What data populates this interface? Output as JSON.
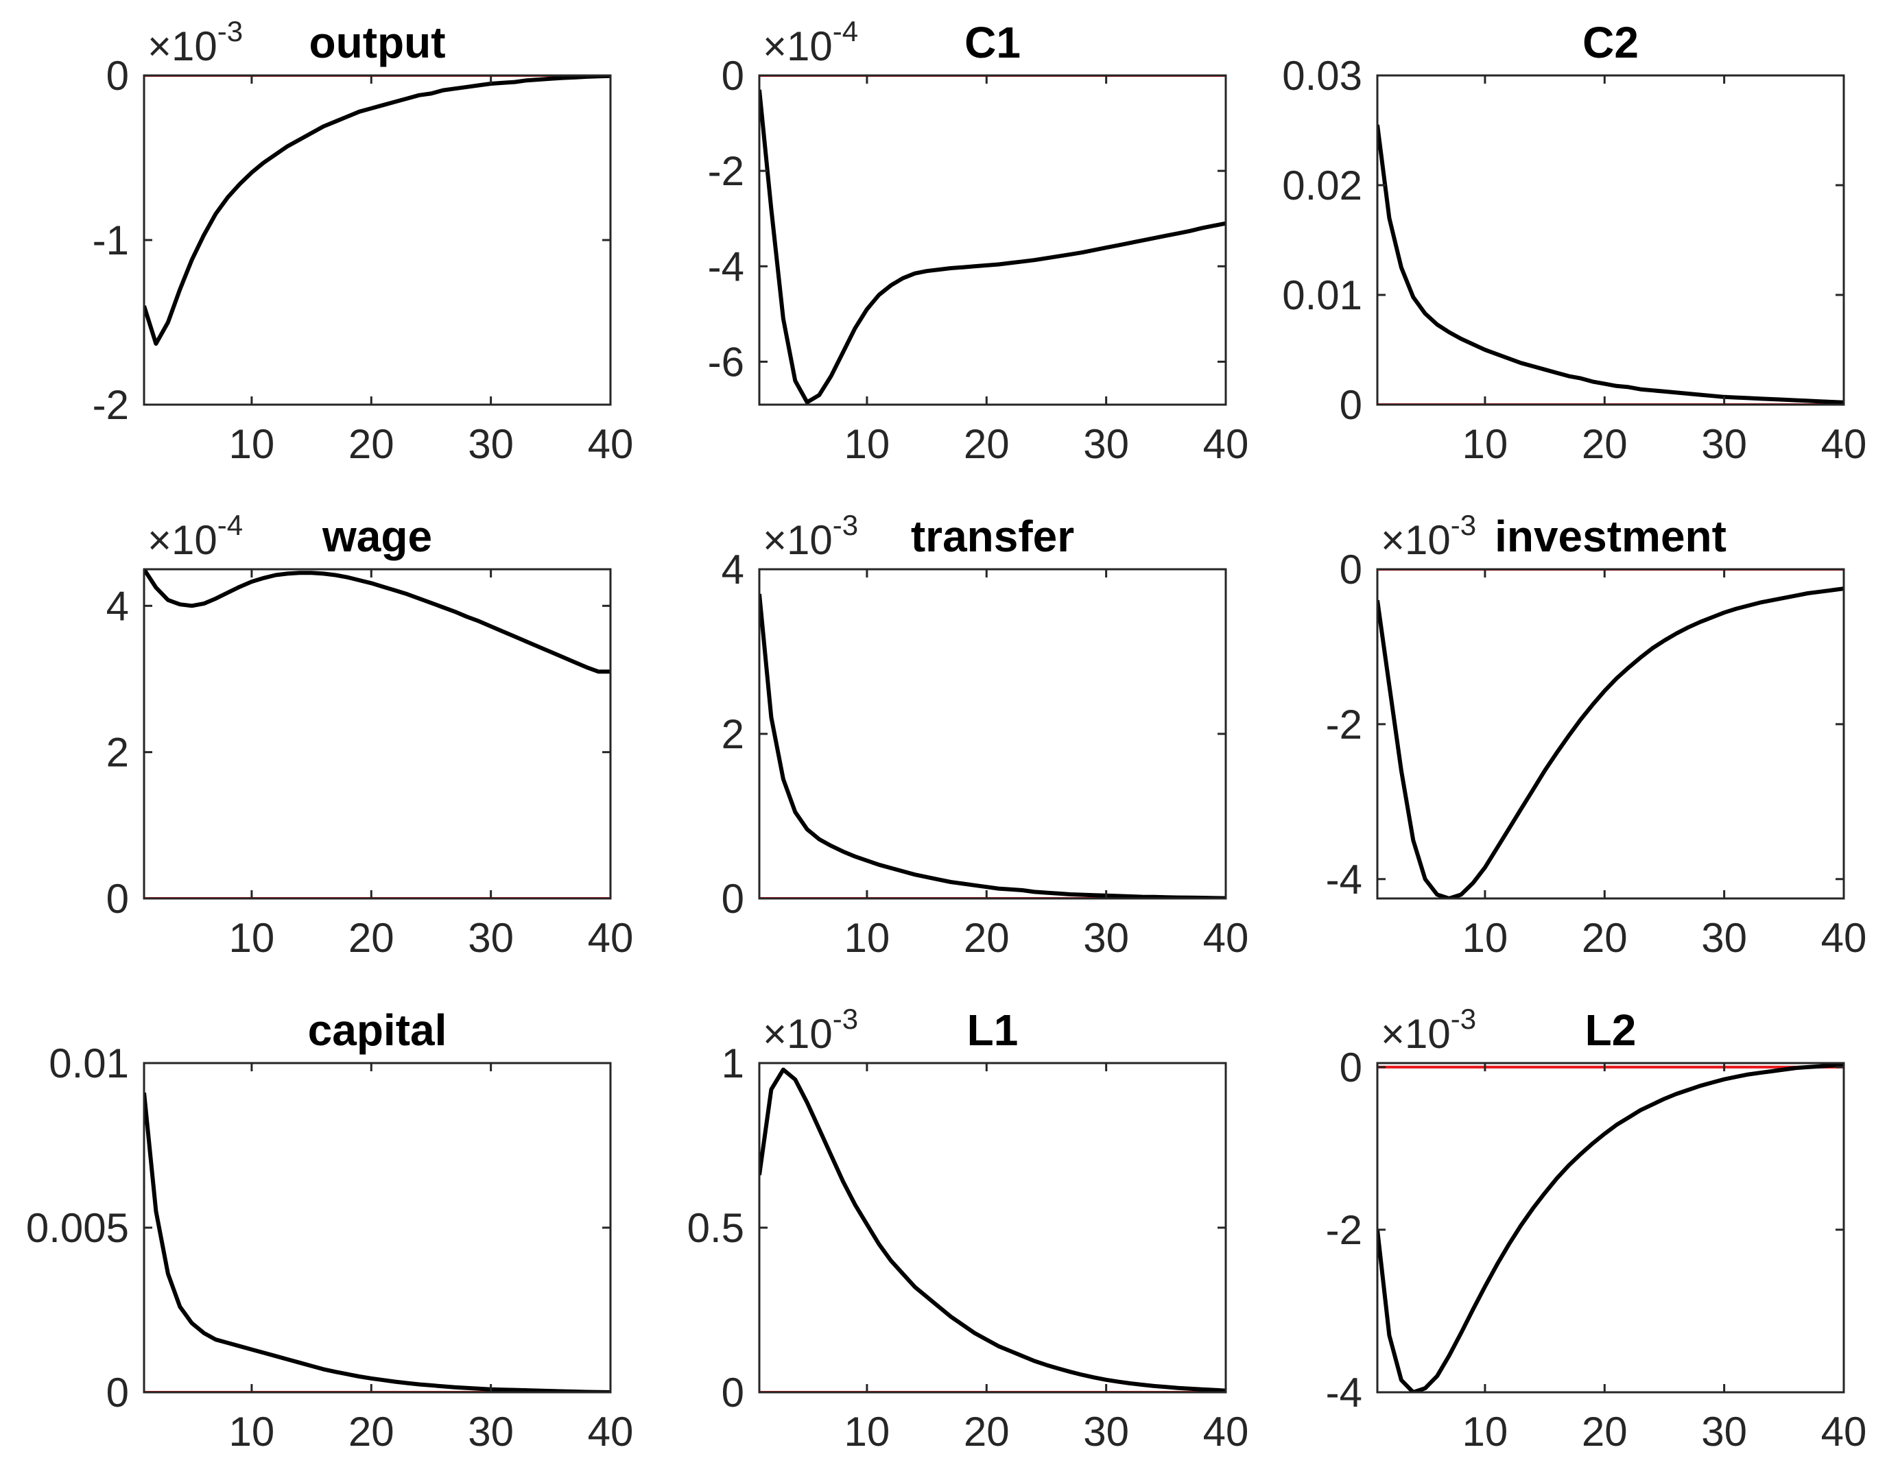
{
  "figure": {
    "colors": {
      "response": "#000000",
      "zero_line": "#e8191c",
      "axes": "#262626"
    }
  },
  "chart_data": [
    {
      "type": "line",
      "title": "output",
      "exponent": "-3",
      "x": [
        1,
        2,
        3,
        4,
        5,
        6,
        7,
        8,
        9,
        10,
        11,
        12,
        13,
        14,
        15,
        16,
        17,
        18,
        19,
        20,
        21,
        22,
        23,
        24,
        25,
        26,
        27,
        28,
        29,
        30,
        31,
        32,
        33,
        34,
        35,
        36,
        37,
        38,
        39,
        40
      ],
      "values": [
        -1.4,
        -1.63,
        -1.5,
        -1.3,
        -1.12,
        -0.97,
        -0.84,
        -0.74,
        -0.66,
        -0.59,
        -0.53,
        -0.48,
        -0.43,
        -0.39,
        -0.35,
        -0.31,
        -0.28,
        -0.25,
        -0.22,
        -0.2,
        -0.18,
        -0.16,
        -0.14,
        -0.12,
        -0.11,
        -0.09,
        -0.08,
        -0.07,
        -0.06,
        -0.05,
        -0.045,
        -0.04,
        -0.03,
        -0.025,
        -0.02,
        -0.015,
        -0.012,
        -0.008,
        -0.005,
        -0.003
      ],
      "xlim": [
        1,
        40
      ],
      "ylim": [
        -2,
        0
      ],
      "xticks": [
        10,
        20,
        30,
        40
      ],
      "xtick_labels": [
        "10",
        "20",
        "30",
        "40"
      ],
      "yticks": [
        0,
        -1,
        -2
      ],
      "ytick_labels": [
        "0",
        "-1",
        "-2"
      ],
      "zero_line": 0
    },
    {
      "type": "line",
      "title": "C1",
      "exponent": "-4",
      "x": [
        1,
        2,
        3,
        4,
        5,
        6,
        7,
        8,
        9,
        10,
        11,
        12,
        13,
        14,
        15,
        16,
        17,
        18,
        19,
        20,
        21,
        22,
        23,
        24,
        25,
        26,
        27,
        28,
        29,
        30,
        31,
        32,
        33,
        34,
        35,
        36,
        37,
        38,
        39,
        40
      ],
      "values": [
        -0.3,
        -2.8,
        -5.1,
        -6.4,
        -6.85,
        -6.7,
        -6.3,
        -5.8,
        -5.3,
        -4.9,
        -4.6,
        -4.4,
        -4.25,
        -4.15,
        -4.1,
        -4.07,
        -4.04,
        -4.02,
        -4.0,
        -3.98,
        -3.96,
        -3.93,
        -3.9,
        -3.87,
        -3.83,
        -3.79,
        -3.75,
        -3.71,
        -3.66,
        -3.61,
        -3.56,
        -3.51,
        -3.46,
        -3.41,
        -3.36,
        -3.31,
        -3.26,
        -3.2,
        -3.15,
        -3.1
      ],
      "xlim": [
        1,
        40
      ],
      "ylim": [
        -6.9,
        0
      ],
      "xticks": [
        10,
        20,
        30,
        40
      ],
      "xtick_labels": [
        "10",
        "20",
        "30",
        "40"
      ],
      "yticks": [
        0,
        -2,
        -4,
        -6
      ],
      "ytick_labels": [
        "0",
        "-2",
        "-4",
        "-6"
      ],
      "zero_line": 0
    },
    {
      "type": "line",
      "title": "C2",
      "exponent": "",
      "x": [
        1,
        2,
        3,
        4,
        5,
        6,
        7,
        8,
        9,
        10,
        11,
        12,
        13,
        14,
        15,
        16,
        17,
        18,
        19,
        20,
        21,
        22,
        23,
        24,
        25,
        26,
        27,
        28,
        29,
        30,
        31,
        32,
        33,
        34,
        35,
        36,
        37,
        38,
        39,
        40
      ],
      "values": [
        0.0255,
        0.017,
        0.0125,
        0.0098,
        0.0083,
        0.0073,
        0.0066,
        0.006,
        0.0055,
        0.005,
        0.0046,
        0.0042,
        0.0038,
        0.0035,
        0.0032,
        0.0029,
        0.0026,
        0.0024,
        0.0021,
        0.0019,
        0.0017,
        0.0016,
        0.0014,
        0.0013,
        0.0012,
        0.0011,
        0.001,
        0.0009,
        0.0008,
        0.0007,
        0.00065,
        0.0006,
        0.00055,
        0.0005,
        0.00045,
        0.0004,
        0.00035,
        0.0003,
        0.00025,
        0.0002
      ],
      "xlim": [
        1,
        40
      ],
      "ylim": [
        0,
        0.03
      ],
      "xticks": [
        10,
        20,
        30,
        40
      ],
      "xtick_labels": [
        "10",
        "20",
        "30",
        "40"
      ],
      "yticks": [
        0,
        0.01,
        0.02,
        0.03
      ],
      "ytick_labels": [
        "0",
        "0.01",
        "0.02",
        "0.03"
      ],
      "zero_line": 0
    },
    {
      "type": "line",
      "title": "wage",
      "exponent": "-4",
      "x": [
        1,
        2,
        3,
        4,
        5,
        6,
        7,
        8,
        9,
        10,
        11,
        12,
        13,
        14,
        15,
        16,
        17,
        18,
        19,
        20,
        21,
        22,
        23,
        24,
        25,
        26,
        27,
        28,
        29,
        30,
        31,
        32,
        33,
        34,
        35,
        36,
        37,
        38,
        39,
        40
      ],
      "values": [
        4.5,
        4.25,
        4.08,
        4.02,
        4.0,
        4.03,
        4.1,
        4.18,
        4.26,
        4.33,
        4.38,
        4.42,
        4.44,
        4.45,
        4.45,
        4.44,
        4.42,
        4.39,
        4.35,
        4.31,
        4.26,
        4.21,
        4.16,
        4.1,
        4.04,
        3.98,
        3.92,
        3.85,
        3.79,
        3.72,
        3.65,
        3.58,
        3.51,
        3.44,
        3.37,
        3.3,
        3.23,
        3.16,
        3.1,
        3.1
      ],
      "xlim": [
        1,
        40
      ],
      "ylim": [
        0,
        4.5
      ],
      "xticks": [
        10,
        20,
        30,
        40
      ],
      "xtick_labels": [
        "10",
        "20",
        "30",
        "40"
      ],
      "yticks": [
        0,
        2,
        4
      ],
      "ytick_labels": [
        "0",
        "2",
        "4"
      ],
      "zero_line": 0
    },
    {
      "type": "line",
      "title": "transfer",
      "exponent": "-3",
      "x": [
        1,
        2,
        3,
        4,
        5,
        6,
        7,
        8,
        9,
        10,
        11,
        12,
        13,
        14,
        15,
        16,
        17,
        18,
        19,
        20,
        21,
        22,
        23,
        24,
        25,
        26,
        27,
        28,
        29,
        30,
        31,
        32,
        33,
        34,
        35,
        36,
        37,
        38,
        39,
        40
      ],
      "values": [
        3.7,
        2.2,
        1.45,
        1.05,
        0.84,
        0.72,
        0.64,
        0.57,
        0.51,
        0.46,
        0.41,
        0.37,
        0.33,
        0.29,
        0.26,
        0.23,
        0.2,
        0.18,
        0.16,
        0.14,
        0.12,
        0.11,
        0.1,
        0.08,
        0.07,
        0.06,
        0.05,
        0.045,
        0.04,
        0.035,
        0.03,
        0.025,
        0.02,
        0.018,
        0.015,
        0.012,
        0.01,
        0.008,
        0.005,
        0.003
      ],
      "xlim": [
        1,
        40
      ],
      "ylim": [
        0,
        4
      ],
      "xticks": [
        10,
        20,
        30,
        40
      ],
      "xtick_labels": [
        "10",
        "20",
        "30",
        "40"
      ],
      "yticks": [
        0,
        2,
        4
      ],
      "ytick_labels": [
        "0",
        "2",
        "4"
      ],
      "zero_line": 0
    },
    {
      "type": "line",
      "title": "investment",
      "exponent": "-3",
      "x": [
        1,
        2,
        3,
        4,
        5,
        6,
        7,
        8,
        9,
        10,
        11,
        12,
        13,
        14,
        15,
        16,
        17,
        18,
        19,
        20,
        21,
        22,
        23,
        24,
        25,
        26,
        27,
        28,
        29,
        30,
        31,
        32,
        33,
        34,
        35,
        36,
        37,
        38,
        39,
        40
      ],
      "values": [
        -0.4,
        -1.5,
        -2.6,
        -3.5,
        -4.0,
        -4.2,
        -4.25,
        -4.2,
        -4.05,
        -3.85,
        -3.6,
        -3.35,
        -3.1,
        -2.85,
        -2.6,
        -2.37,
        -2.15,
        -1.94,
        -1.75,
        -1.57,
        -1.41,
        -1.27,
        -1.14,
        -1.02,
        -0.92,
        -0.83,
        -0.75,
        -0.68,
        -0.62,
        -0.56,
        -0.51,
        -0.47,
        -0.43,
        -0.4,
        -0.37,
        -0.34,
        -0.31,
        -0.29,
        -0.27,
        -0.25
      ],
      "xlim": [
        1,
        40
      ],
      "ylim": [
        -4.25,
        0
      ],
      "xticks": [
        10,
        20,
        30,
        40
      ],
      "xtick_labels": [
        "10",
        "20",
        "30",
        "40"
      ],
      "yticks": [
        0,
        -2,
        -4
      ],
      "ytick_labels": [
        "0",
        "-2",
        "-4"
      ],
      "zero_line": 0
    },
    {
      "type": "line",
      "title": "capital",
      "exponent": "",
      "x": [
        1,
        2,
        3,
        4,
        5,
        6,
        7,
        8,
        9,
        10,
        11,
        12,
        13,
        14,
        15,
        16,
        17,
        18,
        19,
        20,
        21,
        22,
        23,
        24,
        25,
        26,
        27,
        28,
        29,
        30,
        31,
        32,
        33,
        34,
        35,
        36,
        37,
        38,
        39,
        40
      ],
      "values": [
        0.0091,
        0.0055,
        0.0036,
        0.0026,
        0.0021,
        0.0018,
        0.0016,
        0.0015,
        0.0014,
        0.0013,
        0.0012,
        0.0011,
        0.001,
        0.0009,
        0.0008,
        0.0007,
        0.00062,
        0.00055,
        0.00048,
        0.00042,
        0.00037,
        0.00032,
        0.00028,
        0.00024,
        0.00021,
        0.00018,
        0.00015,
        0.00013,
        0.00011,
        9e-05,
        8e-05,
        7e-05,
        6e-05,
        5e-05,
        4e-05,
        3e-05,
        2e-05,
        1e-05,
        5e-06,
        0.0
      ],
      "xlim": [
        1,
        40
      ],
      "ylim": [
        0,
        0.01
      ],
      "xticks": [
        10,
        20,
        30,
        40
      ],
      "xtick_labels": [
        "10",
        "20",
        "30",
        "40"
      ],
      "yticks": [
        0,
        0.005,
        0.01
      ],
      "ytick_labels": [
        "0",
        "0.005",
        "0.01"
      ],
      "zero_line": 0
    },
    {
      "type": "line",
      "title": "L1",
      "exponent": "-3",
      "x": [
        1,
        2,
        3,
        4,
        5,
        6,
        7,
        8,
        9,
        10,
        11,
        12,
        13,
        14,
        15,
        16,
        17,
        18,
        19,
        20,
        21,
        22,
        23,
        24,
        25,
        26,
        27,
        28,
        29,
        30,
        31,
        32,
        33,
        34,
        35,
        36,
        37,
        38,
        39,
        40
      ],
      "values": [
        0.66,
        0.92,
        0.98,
        0.95,
        0.88,
        0.8,
        0.72,
        0.64,
        0.57,
        0.51,
        0.45,
        0.4,
        0.36,
        0.32,
        0.29,
        0.26,
        0.23,
        0.205,
        0.18,
        0.16,
        0.14,
        0.125,
        0.11,
        0.095,
        0.083,
        0.072,
        0.062,
        0.053,
        0.045,
        0.038,
        0.032,
        0.027,
        0.023,
        0.019,
        0.016,
        0.013,
        0.011,
        0.009,
        0.007,
        0.005
      ],
      "xlim": [
        1,
        40
      ],
      "ylim": [
        0,
        1
      ],
      "xticks": [
        10,
        20,
        30,
        40
      ],
      "xtick_labels": [
        "10",
        "20",
        "30",
        "40"
      ],
      "yticks": [
        0,
        0.5,
        1
      ],
      "ytick_labels": [
        "0",
        "0.5",
        "1"
      ],
      "zero_line": 0
    },
    {
      "type": "line",
      "title": "L2",
      "exponent": "-3",
      "x": [
        1,
        2,
        3,
        4,
        5,
        6,
        7,
        8,
        9,
        10,
        11,
        12,
        13,
        14,
        15,
        16,
        17,
        18,
        19,
        20,
        21,
        22,
        23,
        24,
        25,
        26,
        27,
        28,
        29,
        30,
        31,
        32,
        33,
        34,
        35,
        36,
        37,
        38,
        39,
        40
      ],
      "values": [
        -2.0,
        -3.3,
        -3.85,
        -4.0,
        -3.95,
        -3.8,
        -3.55,
        -3.27,
        -2.98,
        -2.7,
        -2.43,
        -2.18,
        -1.95,
        -1.74,
        -1.55,
        -1.37,
        -1.21,
        -1.07,
        -0.94,
        -0.82,
        -0.71,
        -0.62,
        -0.53,
        -0.46,
        -0.39,
        -0.33,
        -0.28,
        -0.23,
        -0.19,
        -0.15,
        -0.12,
        -0.09,
        -0.07,
        -0.05,
        -0.03,
        -0.01,
        0.0,
        0.01,
        0.02,
        0.03
      ],
      "xlim": [
        1,
        40
      ],
      "ylim": [
        -4,
        0.05
      ],
      "xticks": [
        10,
        20,
        30,
        40
      ],
      "xtick_labels": [
        "10",
        "20",
        "30",
        "40"
      ],
      "yticks": [
        0,
        -2,
        -4
      ],
      "ytick_labels": [
        "0",
        "-2",
        "-4"
      ],
      "zero_line": 0
    }
  ]
}
